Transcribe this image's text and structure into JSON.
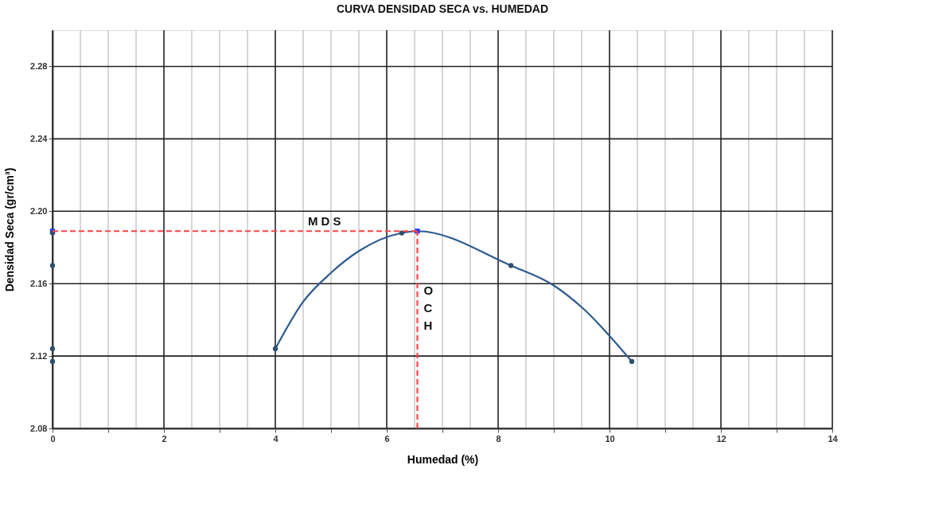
{
  "chart_data": {
    "type": "line",
    "title": "CURVA DENSIDAD SECA vs. HUMEDAD",
    "xlabel": "Humedad (%)",
    "ylabel": "Densidad  Seca (gr/cm³)",
    "xlim": [
      0,
      14
    ],
    "ylim": [
      2.08,
      2.3
    ],
    "xticks": [
      0,
      {
        "value": 0.5,
        "label": null
      },
      {
        "value": 1,
        "label": null
      },
      {
        "value": 1.5,
        "label": null
      },
      2,
      {
        "value": 2.5,
        "label": null
      },
      {
        "value": 3,
        "label": null
      },
      {
        "value": 3.5,
        "label": null
      },
      4,
      {
        "value": 4.5,
        "label": null
      },
      {
        "value": 5,
        "label": null
      },
      {
        "value": 5.5,
        "label": null
      },
      6,
      {
        "value": 6.5,
        "label": null
      },
      {
        "value": 7,
        "label": null
      },
      {
        "value": 7.5,
        "label": null
      },
      8,
      {
        "value": 8.5,
        "label": null
      },
      {
        "value": 9,
        "label": null
      },
      {
        "value": 9.5,
        "label": null
      },
      10,
      {
        "value": 10.5,
        "label": null
      },
      {
        "value": 11,
        "label": null
      },
      {
        "value": 11.5,
        "label": null
      },
      12,
      {
        "value": 12.5,
        "label": null
      },
      {
        "value": 13,
        "label": null
      },
      {
        "value": 13.5,
        "label": null
      },
      14
    ],
    "yticks": [
      2.08,
      2.12,
      2.16,
      {
        "value": 2.2,
        "label": "2.20"
      },
      2.24,
      2.28
    ],
    "grid": true,
    "legend": false,
    "series": [
      {
        "color": "#2b5a8e",
        "marker": "none",
        "line_style": "solid",
        "x": [
          4,
          4.5,
          5,
          5.5,
          6.27,
          6.55,
          8.23,
          9,
          9.5,
          10.4
        ],
        "values": [
          2.124,
          2.15,
          2.166,
          2.178,
          2.188,
          2.189,
          2.17,
          2.159,
          2.147,
          2.117
        ]
      },
      {
        "type": "scatter",
        "color": "#1f3cff",
        "marker": "square",
        "x": [
          0,
          6.55
        ],
        "values": [
          2.189,
          2.189
        ]
      },
      {
        "type": "scatter",
        "color": "#2f4f6f",
        "marker": "circle",
        "x": [
          4,
          6.27,
          8.23,
          10.4
        ],
        "values": [
          2.124,
          2.188,
          2.17,
          2.117
        ]
      },
      {
        "type": "scatter",
        "color": "#2f4f6f",
        "marker": "circle",
        "x": [
          0,
          0,
          0,
          0
        ],
        "values": [
          2.188,
          2.17,
          2.124,
          2.117
        ]
      },
      {
        "name": "M D S",
        "color": "#ff4444",
        "marker": "none",
        "line_style": "dashed",
        "x": [
          0,
          6.55
        ],
        "values": [
          2.189,
          2.189
        ]
      },
      {
        "name": "OCH",
        "color": "#ff4444",
        "marker": "none",
        "line_style": "dashed",
        "x": [
          6.55,
          6.55
        ],
        "values": [
          2.08,
          2.189
        ]
      }
    ]
  }
}
